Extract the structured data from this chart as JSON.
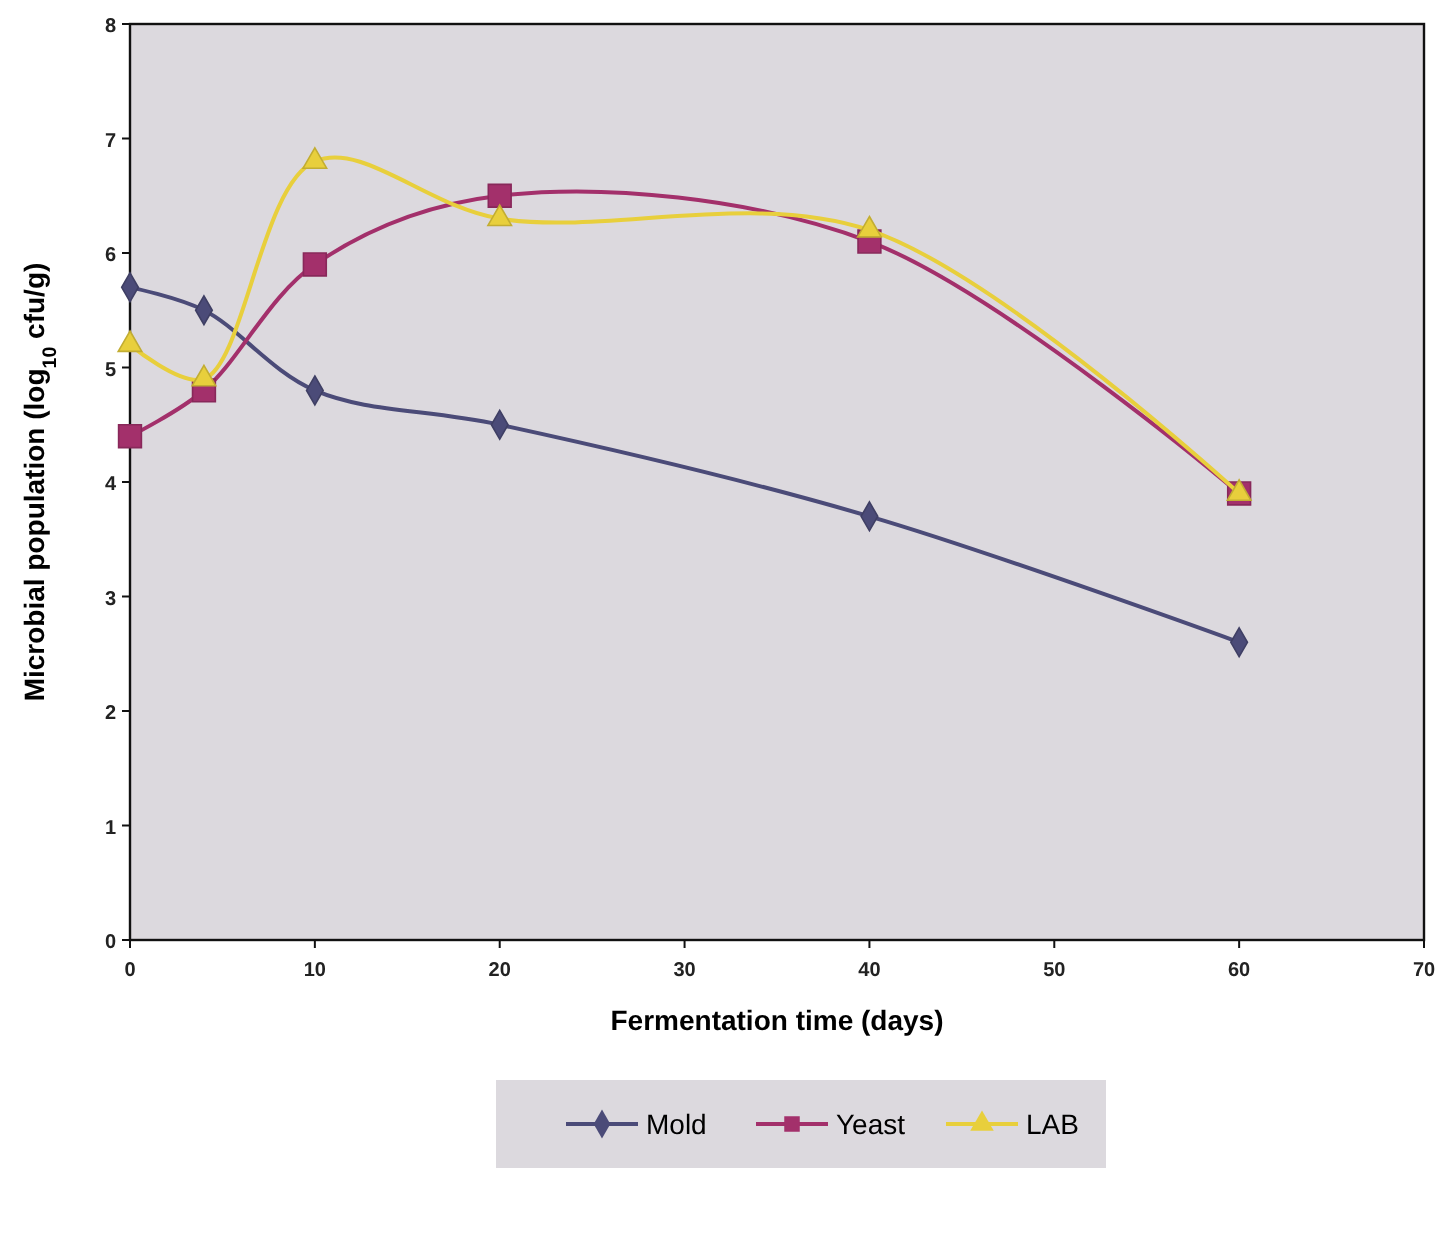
{
  "chart_data": {
    "type": "line",
    "xlabel": "Fermentation time (days)",
    "ylabel": "Microbial population (log$_{10}$ cfu/g)",
    "xlim": [
      0,
      70
    ],
    "xticks": [
      0,
      10,
      20,
      30,
      40,
      50,
      60,
      70
    ],
    "ylim": [
      0,
      8
    ],
    "yticks": [
      0,
      1,
      2,
      3,
      4,
      5,
      6,
      7,
      8
    ],
    "grid": false,
    "legend": "bottom",
    "line_style": "solid",
    "series": [
      {
        "name": "Mold",
        "color": "#4b4b78",
        "marker": "diamond",
        "x": [
          0,
          4,
          10,
          20,
          40,
          60
        ],
        "values": [
          5.7,
          5.5,
          4.8,
          4.5,
          3.7,
          2.6
        ]
      },
      {
        "name": "Yeast",
        "color": "#a3306b",
        "marker": "square",
        "x": [
          0,
          4,
          10,
          20,
          40,
          60
        ],
        "values": [
          4.4,
          4.8,
          5.9,
          6.5,
          6.1,
          3.9
        ]
      },
      {
        "name": "LAB",
        "color": "#e8cf3c",
        "marker": "triangle",
        "x": [
          0,
          4,
          10,
          20,
          40,
          60
        ],
        "values": [
          5.2,
          4.9,
          6.8,
          6.3,
          6.2,
          3.9
        ]
      }
    ]
  }
}
